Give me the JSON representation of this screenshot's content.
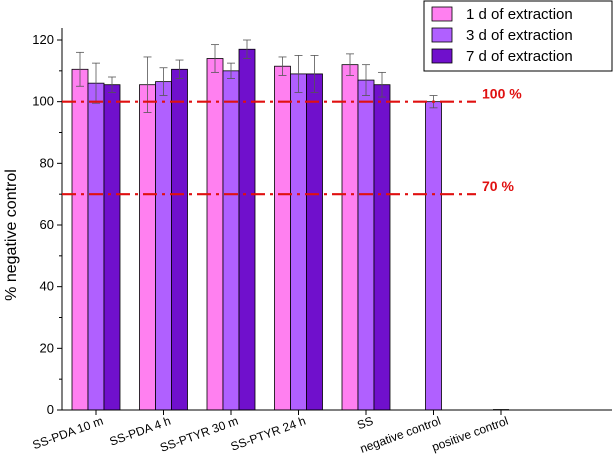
{
  "chart_data": {
    "type": "bar",
    "ylabel": "% negative control",
    "ylim": [
      0,
      120
    ],
    "yticks": [
      0,
      20,
      40,
      60,
      80,
      100,
      120
    ],
    "grid": false,
    "legend_position": "top-right",
    "categories": [
      "SS-PDA 10 m",
      "SS-PDA 4 h",
      "SS-PTYR 30 m",
      "SS-PTYR 24 h",
      "SS",
      "negative control",
      "positive control"
    ],
    "series": [
      {
        "name": "1 d of extraction",
        "color": "#ff80f0",
        "values": [
          110.5,
          105.5,
          114,
          111.5,
          112,
          null,
          null
        ],
        "errors": [
          5.5,
          9,
          4.5,
          3,
          3.5,
          null,
          null
        ]
      },
      {
        "name": "3 d of extraction",
        "color": "#b060ff",
        "values": [
          106,
          106.5,
          110,
          109,
          107,
          100,
          0
        ],
        "errors": [
          6.5,
          4.5,
          2.5,
          6,
          5,
          2,
          0
        ]
      },
      {
        "name": "7 d of extraction",
        "color": "#7010cc",
        "values": [
          105.5,
          110.5,
          117,
          109,
          105.5,
          null,
          null
        ],
        "errors": [
          2.5,
          3,
          3,
          6,
          4,
          null,
          null
        ]
      }
    ],
    "reference_lines": [
      {
        "value": 100,
        "label": "100 %",
        "color": "#e01010"
      },
      {
        "value": 70,
        "label": "70 %",
        "color": "#e01010"
      }
    ]
  }
}
